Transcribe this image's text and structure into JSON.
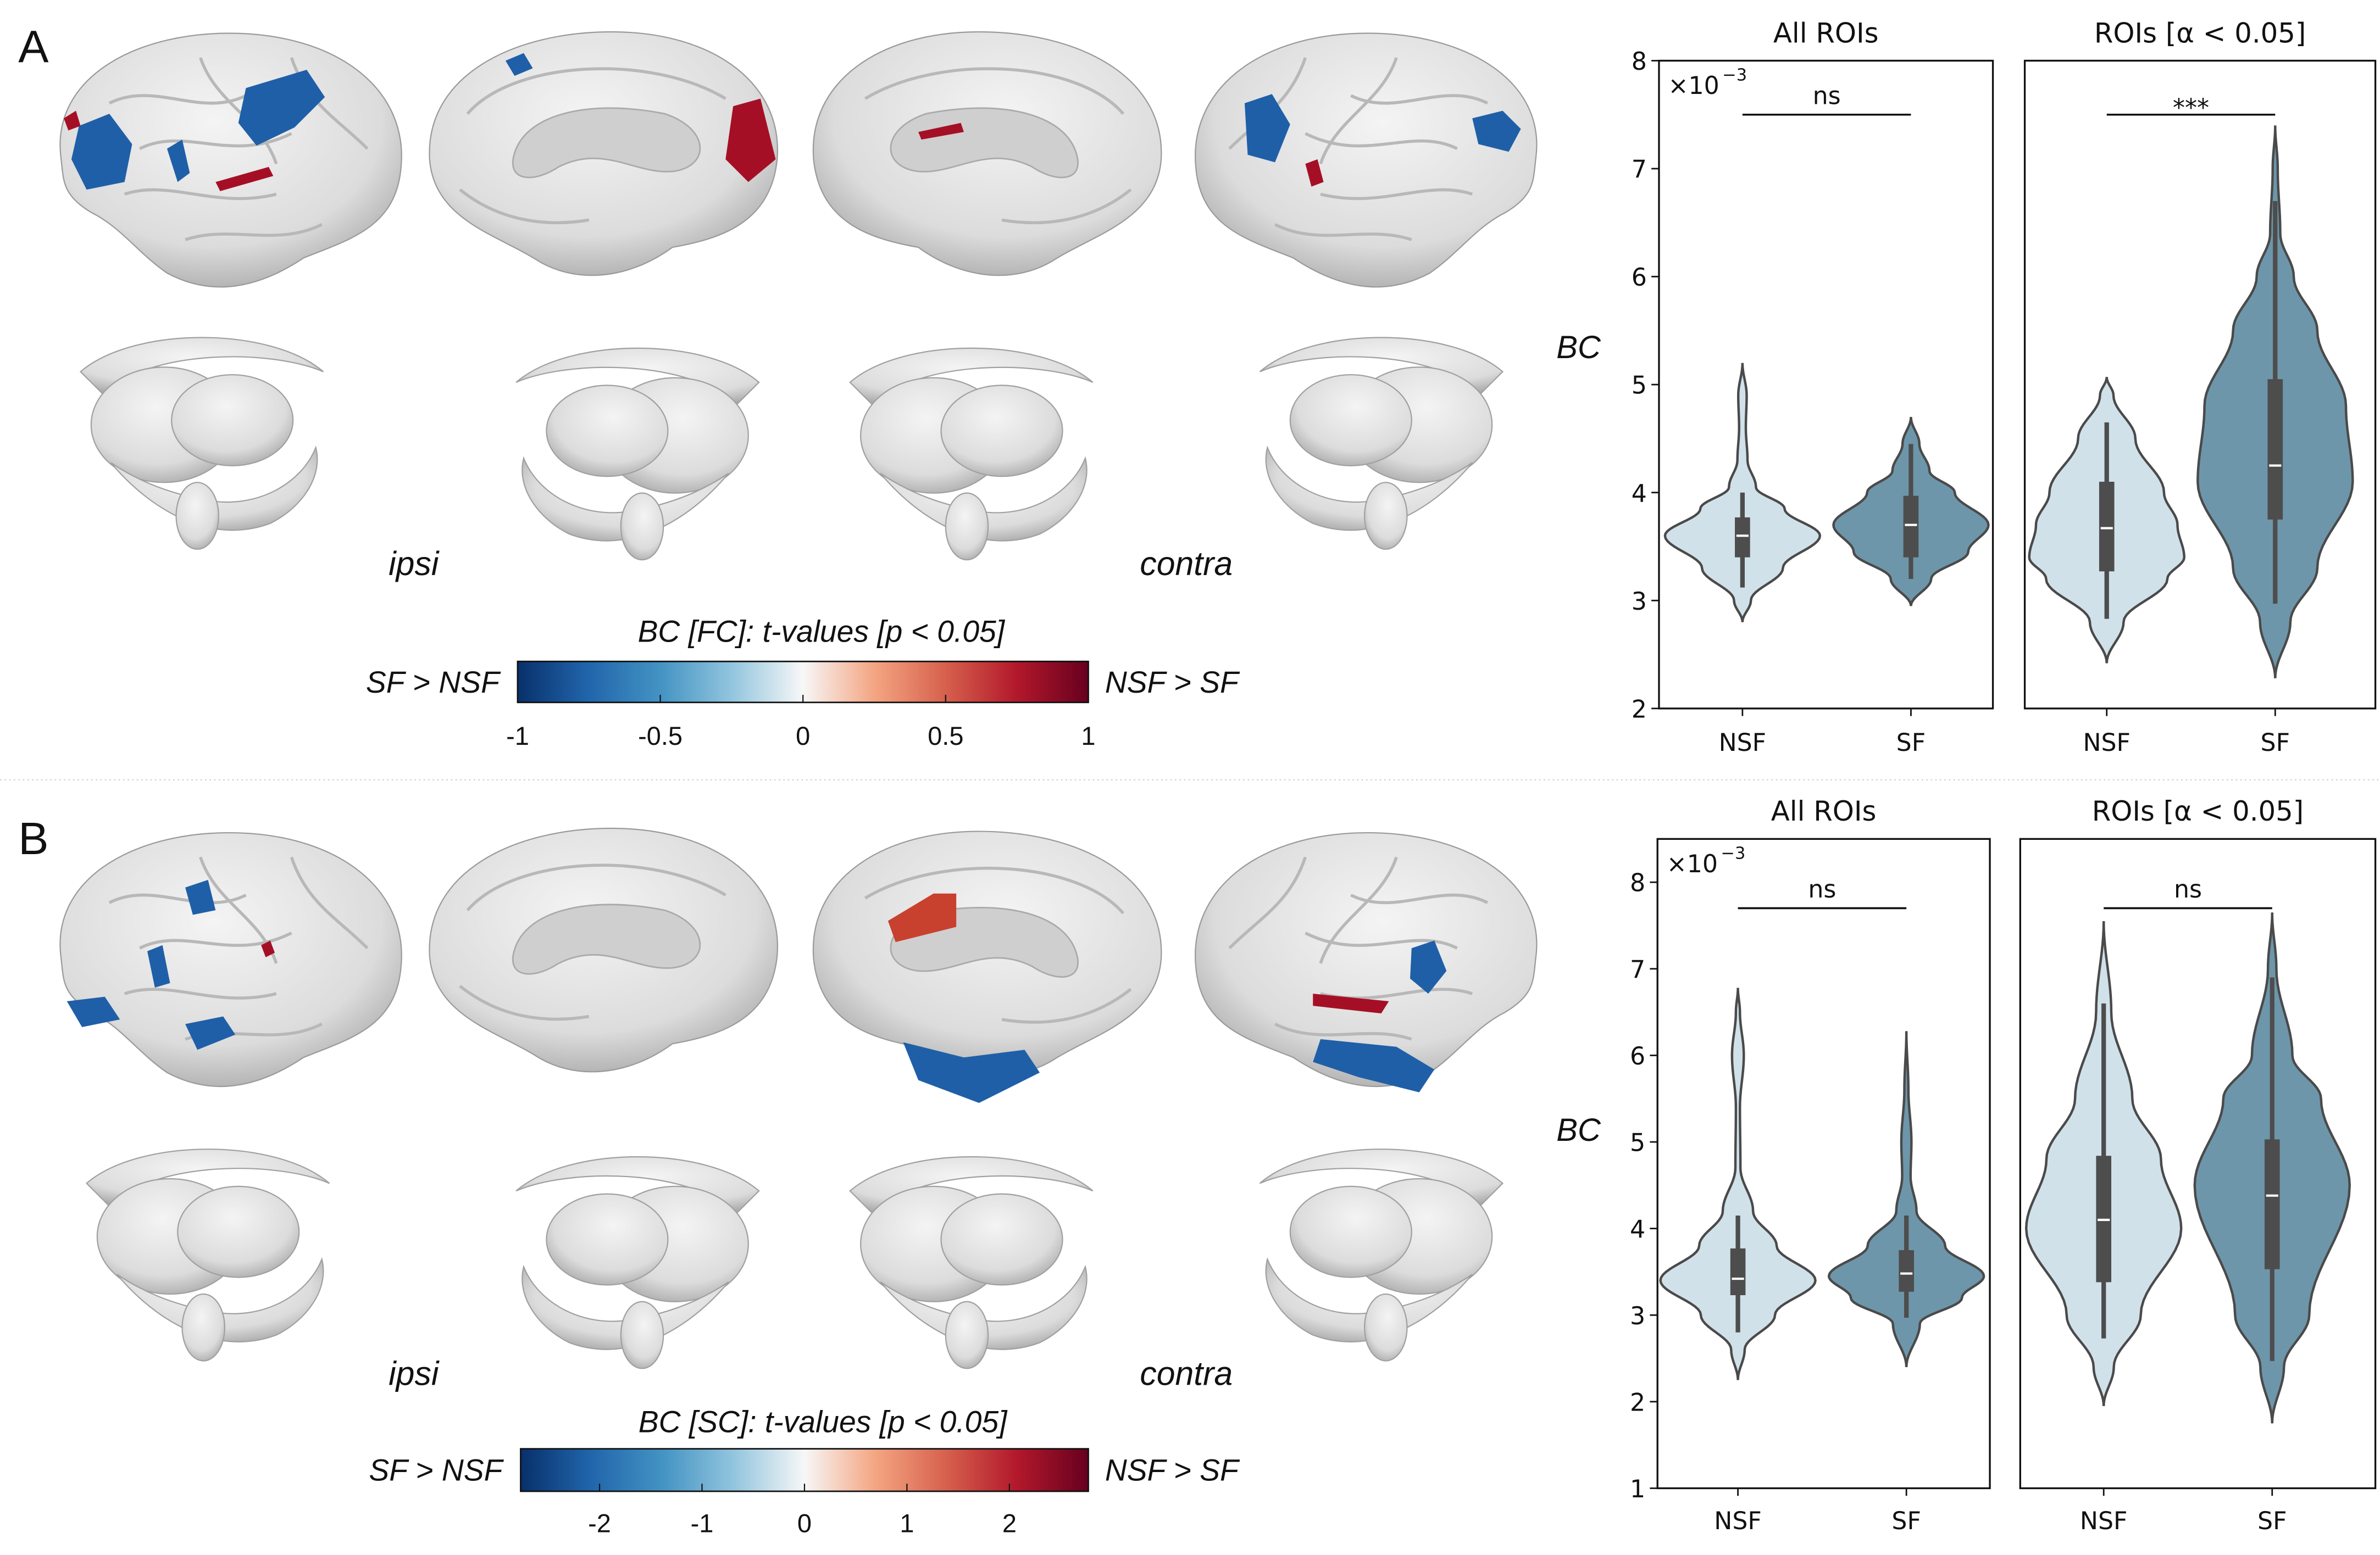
{
  "panels": [
    {
      "label": "A",
      "ipsi": "ipsi",
      "contra": "contra",
      "colorbar": {
        "title": "BC [FC]: t-values [p < 0.05]",
        "left_label": "SF > NSF",
        "right_label": "NSF > SF",
        "range": [
          -1,
          1
        ],
        "tick_values": [
          -1,
          -0.5,
          0,
          0.5,
          1
        ],
        "ticks": [
          "-1",
          "-0.5",
          "0",
          "0.5",
          "1"
        ],
        "colors": [
          "#08306b",
          "#2166ac",
          "#4393c3",
          "#92c5de",
          "#f7f7f7",
          "#f4a582",
          "#d6604d",
          "#b2182b",
          "#67001f"
        ]
      }
    },
    {
      "label": "B",
      "ipsi": "ipsi",
      "contra": "contra",
      "colorbar": {
        "title": "BC [SC]: t-values [p < 0.05]",
        "left_label": "SF > NSF",
        "right_label": "NSF > SF",
        "range": [
          -2.77,
          2.77
        ],
        "tick_values": [
          -2,
          -1,
          0,
          1,
          2
        ],
        "ticks": [
          "-2",
          "-1",
          "0",
          "1",
          "2"
        ],
        "colors": [
          "#08306b",
          "#2166ac",
          "#4393c3",
          "#92c5de",
          "#f7f7f7",
          "#f4a582",
          "#d6604d",
          "#b2182b",
          "#67001f"
        ]
      }
    }
  ],
  "colors": {
    "nsf": "#d1e1ea",
    "sf": "#6e96aa",
    "outline": "#4a4a4a",
    "box": "#4d4d4d",
    "blue_roi": "#1f5fa8",
    "red_roi": "#a50f25"
  },
  "chart_data": [
    {
      "type": "violin",
      "panel": "A",
      "title": "All ROIs",
      "ylabel": "BC",
      "multiplier_base": "×10",
      "multiplier_exp": "−3",
      "ylim": [
        2,
        8
      ],
      "yticks": [
        2,
        3,
        4,
        5,
        6,
        7,
        8
      ],
      "ytick_labels": [
        "2",
        "3",
        "4",
        "5",
        "6",
        "7",
        "8"
      ],
      "categories": [
        "NSF",
        "SF"
      ],
      "significance": "ns",
      "sig_bar_y": 7.5,
      "series": [
        {
          "name": "NSF",
          "box": {
            "whisker_low": 3.12,
            "q1": 3.4,
            "median": 3.6,
            "q3": 3.77,
            "whisker_high": 4.0
          },
          "density": [
            [
              2.8,
              0
            ],
            [
              3.0,
              0.05
            ],
            [
              3.3,
              0.24
            ],
            [
              3.6,
              0.46
            ],
            [
              3.85,
              0.25
            ],
            [
              4.05,
              0.08
            ],
            [
              4.3,
              0.03
            ],
            [
              4.6,
              0.02
            ],
            [
              4.9,
              0.025
            ],
            [
              5.2,
              0
            ]
          ]
        },
        {
          "name": "SF",
          "box": {
            "whisker_low": 3.2,
            "q1": 3.4,
            "median": 3.7,
            "q3": 3.97,
            "whisker_high": 4.45
          },
          "density": [
            [
              2.95,
              0
            ],
            [
              3.2,
              0.12
            ],
            [
              3.45,
              0.34
            ],
            [
              3.7,
              0.46
            ],
            [
              4.0,
              0.26
            ],
            [
              4.2,
              0.11
            ],
            [
              4.45,
              0.05
            ],
            [
              4.7,
              0
            ]
          ]
        }
      ]
    },
    {
      "type": "violin",
      "panel": "A",
      "title": "ROIs [α < 0.05]",
      "ylabel": "",
      "ylim": [
        2,
        8
      ],
      "categories": [
        "NSF",
        "SF"
      ],
      "significance": "***",
      "sig_bar_y": 7.5,
      "series": [
        {
          "name": "NSF",
          "box": {
            "whisker_low": 2.83,
            "q1": 3.27,
            "median": 3.67,
            "q3": 4.1,
            "whisker_high": 4.65
          },
          "density": [
            [
              2.42,
              0
            ],
            [
              2.8,
              0.1
            ],
            [
              3.2,
              0.36
            ],
            [
              3.4,
              0.46
            ],
            [
              3.7,
              0.42
            ],
            [
              4.0,
              0.34
            ],
            [
              4.5,
              0.17
            ],
            [
              4.9,
              0.04
            ],
            [
              5.07,
              0
            ]
          ]
        },
        {
          "name": "SF",
          "box": {
            "whisker_low": 2.97,
            "q1": 3.75,
            "median": 4.25,
            "q3": 5.05,
            "whisker_high": 6.7
          },
          "density": [
            [
              2.28,
              0
            ],
            [
              2.8,
              0.09
            ],
            [
              3.3,
              0.25
            ],
            [
              4.1,
              0.46
            ],
            [
              4.8,
              0.42
            ],
            [
              5.5,
              0.25
            ],
            [
              6.0,
              0.11
            ],
            [
              6.4,
              0.03
            ],
            [
              7.0,
              0.015
            ],
            [
              7.4,
              0
            ]
          ]
        }
      ]
    },
    {
      "type": "violin",
      "panel": "B",
      "title": "All ROIs",
      "ylabel": "BC",
      "multiplier_base": "×10",
      "multiplier_exp": "−3",
      "ylim": [
        1,
        8.5
      ],
      "yticks": [
        1,
        2,
        3,
        4,
        5,
        6,
        7,
        8
      ],
      "ytick_labels": [
        "1",
        "2",
        "3",
        "4",
        "5",
        "6",
        "7",
        "8"
      ],
      "categories": [
        "NSF",
        "SF"
      ],
      "significance": "ns",
      "sig_bar_y": 7.7,
      "series": [
        {
          "name": "NSF",
          "box": {
            "whisker_low": 2.8,
            "q1": 3.23,
            "median": 3.42,
            "q3": 3.77,
            "whisker_high": 4.15
          },
          "density": [
            [
              2.25,
              0
            ],
            [
              2.6,
              0.04
            ],
            [
              3.0,
              0.22
            ],
            [
              3.4,
              0.46
            ],
            [
              3.8,
              0.23
            ],
            [
              4.2,
              0.09
            ],
            [
              4.7,
              0.015
            ],
            [
              5.4,
              0.012
            ],
            [
              6.0,
              0.035
            ],
            [
              6.5,
              0.012
            ],
            [
              6.78,
              0
            ]
          ]
        },
        {
          "name": "SF",
          "box": {
            "whisker_low": 2.97,
            "q1": 3.27,
            "median": 3.48,
            "q3": 3.75,
            "whisker_high": 4.15
          },
          "density": [
            [
              2.4,
              0
            ],
            [
              2.9,
              0.08
            ],
            [
              3.2,
              0.33
            ],
            [
              3.45,
              0.46
            ],
            [
              3.8,
              0.23
            ],
            [
              4.2,
              0.06
            ],
            [
              4.6,
              0.025
            ],
            [
              5.0,
              0.03
            ],
            [
              5.6,
              0.012
            ],
            [
              6.28,
              0
            ]
          ]
        }
      ]
    },
    {
      "type": "violin",
      "panel": "B",
      "title": "ROIs [α < 0.05]",
      "ylabel": "",
      "ylim": [
        1,
        8.5
      ],
      "categories": [
        "NSF",
        "SF"
      ],
      "significance": "ns",
      "sig_bar_y": 7.7,
      "series": [
        {
          "name": "NSF",
          "box": {
            "whisker_low": 2.73,
            "q1": 3.38,
            "median": 4.1,
            "q3": 4.84,
            "whisker_high": 6.6
          },
          "density": [
            [
              1.95,
              0
            ],
            [
              2.4,
              0.06
            ],
            [
              3.0,
              0.22
            ],
            [
              4.0,
              0.46
            ],
            [
              4.8,
              0.34
            ],
            [
              5.5,
              0.17
            ],
            [
              6.5,
              0.045
            ],
            [
              7.55,
              0
            ]
          ]
        },
        {
          "name": "SF",
          "box": {
            "whisker_low": 2.47,
            "q1": 3.53,
            "median": 4.38,
            "q3": 5.03,
            "whisker_high": 6.9
          },
          "density": [
            [
              1.75,
              0
            ],
            [
              2.4,
              0.07
            ],
            [
              3.0,
              0.22
            ],
            [
              4.5,
              0.46
            ],
            [
              5.5,
              0.29
            ],
            [
              6.0,
              0.12
            ],
            [
              7.0,
              0.025
            ],
            [
              7.65,
              0
            ]
          ]
        }
      ]
    }
  ]
}
